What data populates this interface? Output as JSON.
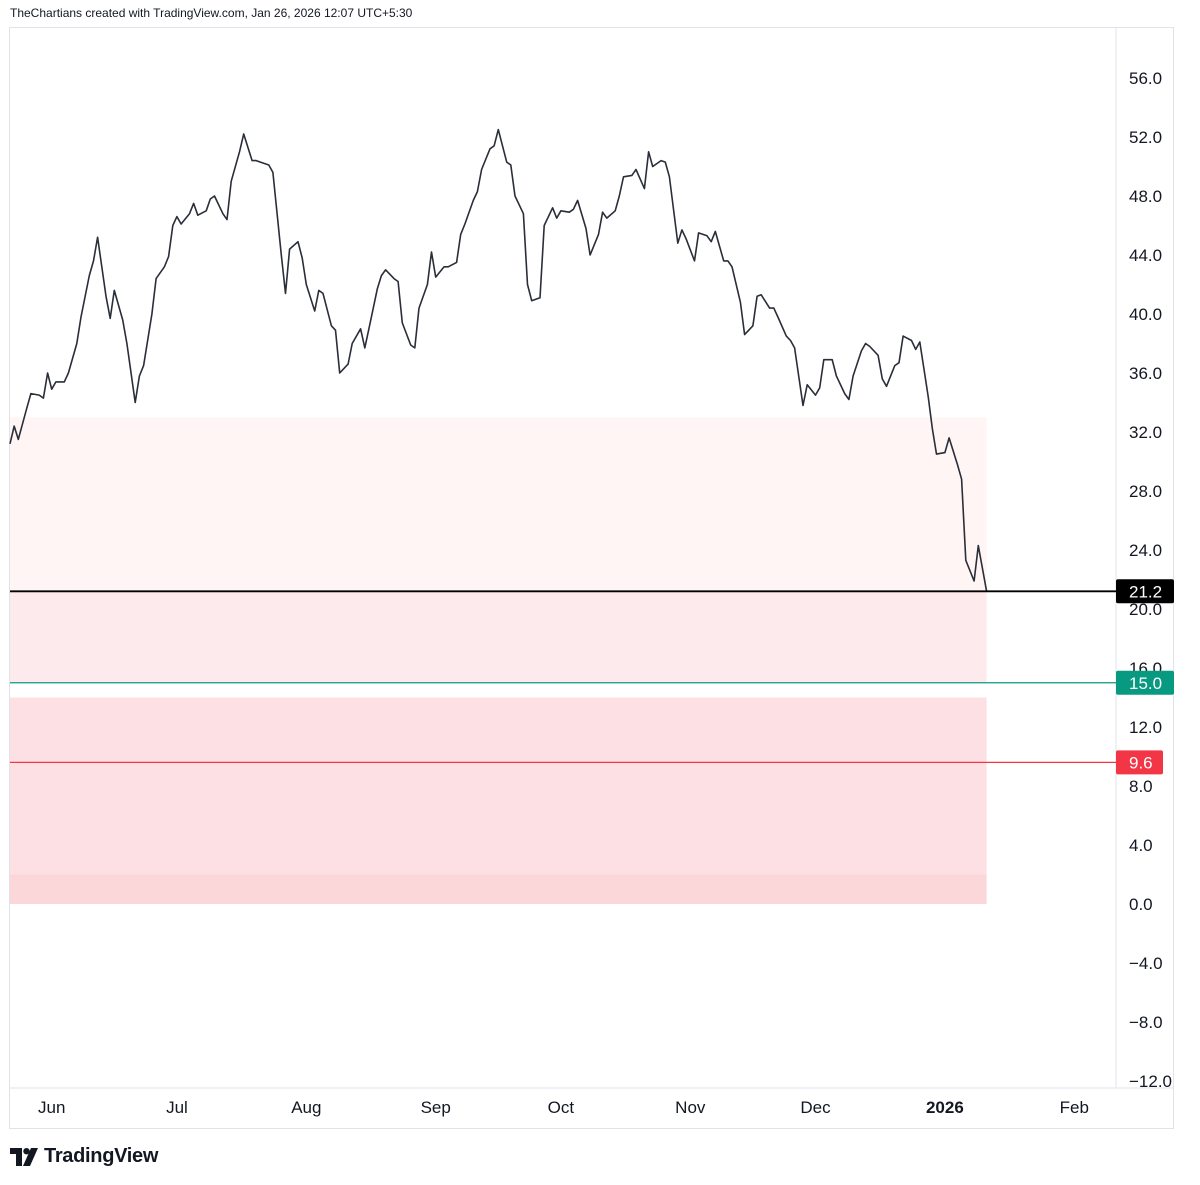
{
  "header": {
    "text": "TheChartians created with TradingView.com, Jan 26, 2026 12:07 UTC+5:30"
  },
  "footer": {
    "brand": "TradingView"
  },
  "colors": {
    "line": "#2a2e39",
    "zone_light": "#fff5f5",
    "zone_mid": "#fdeaec",
    "zone_dark": "#fde0e3",
    "zone_darkest": "#fcd7da",
    "current_line": "#000000",
    "green_line": "#089981",
    "red_line": "#f23645"
  },
  "chart_data": {
    "type": "line",
    "ylim": [
      -12,
      58
    ],
    "y_ticks": [
      "56.0",
      "52.0",
      "48.0",
      "44.0",
      "40.0",
      "36.0",
      "32.0",
      "28.0",
      "24.0",
      "20.0",
      "16.0",
      "12.0",
      "8.0",
      "4.0",
      "0.0",
      "−4.0",
      "−8.0",
      "−12.0"
    ],
    "x_ticks": [
      {
        "label": "Jun",
        "x": "2025-06-01",
        "bold": false
      },
      {
        "label": "Jul",
        "x": "2025-07-01",
        "bold": false
      },
      {
        "label": "Aug",
        "x": "2025-08-01",
        "bold": false
      },
      {
        "label": "Sep",
        "x": "2025-09-01",
        "bold": false
      },
      {
        "label": "Oct",
        "x": "2025-10-01",
        "bold": false
      },
      {
        "label": "Nov",
        "x": "2025-11-01",
        "bold": false
      },
      {
        "label": "Dec",
        "x": "2025-12-01",
        "bold": false
      },
      {
        "label": "2026",
        "x": "2026-01-01",
        "bold": true
      },
      {
        "label": "Feb",
        "x": "2026-02-01",
        "bold": false
      }
    ],
    "x_range": [
      "2025-05-22",
      "2026-02-11"
    ],
    "series": [
      {
        "values": [
          [
            "2025-05-22",
            31.2
          ],
          [
            "2025-05-23",
            32.4
          ],
          [
            "2025-05-24",
            31.5
          ],
          [
            "2025-05-26",
            33.6
          ],
          [
            "2025-05-27",
            34.6
          ],
          [
            "2025-05-29",
            34.5
          ],
          [
            "2025-05-30",
            34.3
          ],
          [
            "2025-05-31",
            36.0
          ],
          [
            "2025-06-01",
            34.9
          ],
          [
            "2025-06-02",
            35.4
          ],
          [
            "2025-06-04",
            35.4
          ],
          [
            "2025-06-05",
            36.0
          ],
          [
            "2025-06-07",
            38.0
          ],
          [
            "2025-06-08",
            39.8
          ],
          [
            "2025-06-10",
            42.6
          ],
          [
            "2025-06-11",
            43.6
          ],
          [
            "2025-06-12",
            45.2
          ],
          [
            "2025-06-14",
            41.2
          ],
          [
            "2025-06-15",
            39.7
          ],
          [
            "2025-06-16",
            41.6
          ],
          [
            "2025-06-18",
            39.6
          ],
          [
            "2025-06-19",
            38.0
          ],
          [
            "2025-06-21",
            34.0
          ],
          [
            "2025-06-22",
            35.8
          ],
          [
            "2025-06-23",
            36.5
          ],
          [
            "2025-06-25",
            40.0
          ],
          [
            "2025-06-26",
            42.4
          ],
          [
            "2025-06-28",
            43.2
          ],
          [
            "2025-06-29",
            43.9
          ],
          [
            "2025-06-30",
            46.0
          ],
          [
            "2025-07-01",
            46.6
          ],
          [
            "2025-07-02",
            46.1
          ],
          [
            "2025-07-04",
            46.8
          ],
          [
            "2025-07-05",
            47.5
          ],
          [
            "2025-07-06",
            46.7
          ],
          [
            "2025-07-08",
            47.0
          ],
          [
            "2025-07-09",
            47.8
          ],
          [
            "2025-07-10",
            48.0
          ],
          [
            "2025-07-12",
            46.8
          ],
          [
            "2025-07-13",
            46.4
          ],
          [
            "2025-07-14",
            49.0
          ],
          [
            "2025-07-16",
            51.0
          ],
          [
            "2025-07-17",
            52.2
          ],
          [
            "2025-07-19",
            50.4
          ],
          [
            "2025-07-20",
            50.4
          ],
          [
            "2025-07-21",
            50.3
          ],
          [
            "2025-07-23",
            50.1
          ],
          [
            "2025-07-24",
            49.6
          ],
          [
            "2025-07-26",
            44.0
          ],
          [
            "2025-07-27",
            41.4
          ],
          [
            "2025-07-28",
            44.4
          ],
          [
            "2025-07-30",
            44.9
          ],
          [
            "2025-07-31",
            43.8
          ],
          [
            "2025-08-01",
            42.0
          ],
          [
            "2025-08-03",
            40.2
          ],
          [
            "2025-08-04",
            41.6
          ],
          [
            "2025-08-05",
            41.4
          ],
          [
            "2025-08-07",
            39.2
          ],
          [
            "2025-08-08",
            38.9
          ],
          [
            "2025-08-09",
            36.0
          ],
          [
            "2025-08-11",
            36.6
          ],
          [
            "2025-08-12",
            38.0
          ],
          [
            "2025-08-14",
            39.0
          ],
          [
            "2025-08-15",
            37.7
          ],
          [
            "2025-08-16",
            39.0
          ],
          [
            "2025-08-18",
            41.7
          ],
          [
            "2025-08-19",
            42.6
          ],
          [
            "2025-08-20",
            43.0
          ],
          [
            "2025-08-22",
            42.4
          ],
          [
            "2025-08-23",
            42.2
          ],
          [
            "2025-08-24",
            39.4
          ],
          [
            "2025-08-26",
            37.9
          ],
          [
            "2025-08-27",
            37.7
          ],
          [
            "2025-08-28",
            40.4
          ],
          [
            "2025-08-30",
            42.0
          ],
          [
            "2025-08-31",
            44.2
          ],
          [
            "2025-09-01",
            42.5
          ],
          [
            "2025-09-03",
            43.2
          ],
          [
            "2025-09-04",
            43.2
          ],
          [
            "2025-09-06",
            43.5
          ],
          [
            "2025-09-07",
            45.4
          ],
          [
            "2025-09-08",
            46.1
          ],
          [
            "2025-09-10",
            47.7
          ],
          [
            "2025-09-11",
            48.3
          ],
          [
            "2025-09-12",
            49.8
          ],
          [
            "2025-09-14",
            51.2
          ],
          [
            "2025-09-15",
            51.4
          ],
          [
            "2025-09-16",
            52.5
          ],
          [
            "2025-09-18",
            50.3
          ],
          [
            "2025-09-19",
            50.1
          ],
          [
            "2025-09-20",
            48.0
          ],
          [
            "2025-09-22",
            46.8
          ],
          [
            "2025-09-23",
            42.0
          ],
          [
            "2025-09-24",
            40.9
          ],
          [
            "2025-09-26",
            41.1
          ],
          [
            "2025-09-27",
            46.0
          ],
          [
            "2025-09-29",
            47.2
          ],
          [
            "2025-09-30",
            46.5
          ],
          [
            "2025-10-01",
            47.0
          ],
          [
            "2025-10-03",
            46.9
          ],
          [
            "2025-10-04",
            47.1
          ],
          [
            "2025-10-05",
            47.7
          ],
          [
            "2025-10-07",
            45.8
          ],
          [
            "2025-10-08",
            44.0
          ],
          [
            "2025-10-10",
            45.4
          ],
          [
            "2025-10-11",
            46.9
          ],
          [
            "2025-10-12",
            46.5
          ],
          [
            "2025-10-14",
            47.0
          ],
          [
            "2025-10-15",
            48.0
          ],
          [
            "2025-10-16",
            49.3
          ],
          [
            "2025-10-18",
            49.4
          ],
          [
            "2025-10-19",
            49.8
          ],
          [
            "2025-10-21",
            48.5
          ],
          [
            "2025-10-22",
            51.0
          ],
          [
            "2025-10-23",
            50.0
          ],
          [
            "2025-10-25",
            50.4
          ],
          [
            "2025-10-26",
            50.3
          ],
          [
            "2025-10-27",
            49.3
          ],
          [
            "2025-10-29",
            44.8
          ],
          [
            "2025-10-30",
            45.7
          ],
          [
            "2025-10-31",
            45.1
          ],
          [
            "2025-11-02",
            43.6
          ],
          [
            "2025-11-03",
            45.5
          ],
          [
            "2025-11-05",
            45.3
          ],
          [
            "2025-11-06",
            44.9
          ],
          [
            "2025-11-07",
            45.6
          ],
          [
            "2025-11-09",
            43.6
          ],
          [
            "2025-11-10",
            43.6
          ],
          [
            "2025-11-11",
            43.2
          ],
          [
            "2025-11-13",
            40.8
          ],
          [
            "2025-11-14",
            38.6
          ],
          [
            "2025-11-16",
            39.2
          ],
          [
            "2025-11-17",
            41.2
          ],
          [
            "2025-11-18",
            41.3
          ],
          [
            "2025-11-20",
            40.4
          ],
          [
            "2025-11-21",
            40.4
          ],
          [
            "2025-11-22",
            39.8
          ],
          [
            "2025-11-24",
            38.5
          ],
          [
            "2025-11-25",
            38.2
          ],
          [
            "2025-11-26",
            37.7
          ],
          [
            "2025-11-28",
            33.8
          ],
          [
            "2025-11-29",
            35.2
          ],
          [
            "2025-12-01",
            34.5
          ],
          [
            "2025-12-02",
            35.0
          ],
          [
            "2025-12-03",
            36.9
          ],
          [
            "2025-12-05",
            36.9
          ],
          [
            "2025-12-06",
            35.8
          ],
          [
            "2025-12-08",
            34.6
          ],
          [
            "2025-12-09",
            34.2
          ],
          [
            "2025-12-10",
            35.8
          ],
          [
            "2025-12-12",
            37.5
          ],
          [
            "2025-12-13",
            38.0
          ],
          [
            "2025-12-14",
            37.8
          ],
          [
            "2025-12-16",
            37.2
          ],
          [
            "2025-12-17",
            35.6
          ],
          [
            "2025-12-18",
            35.1
          ],
          [
            "2025-12-20",
            36.5
          ],
          [
            "2025-12-21",
            36.7
          ],
          [
            "2025-12-22",
            38.5
          ],
          [
            "2025-12-24",
            38.2
          ],
          [
            "2025-12-25",
            37.6
          ],
          [
            "2025-12-26",
            38.1
          ],
          [
            "2025-12-28",
            34.4
          ],
          [
            "2025-12-29",
            32.2
          ],
          [
            "2025-12-30",
            30.5
          ],
          [
            "2026-01-01",
            30.6
          ],
          [
            "2026-01-02",
            31.6
          ],
          [
            "2026-01-04",
            29.8
          ],
          [
            "2026-01-05",
            28.8
          ],
          [
            "2026-01-06",
            23.3
          ],
          [
            "2026-01-08",
            21.9
          ],
          [
            "2026-01-09",
            24.3
          ],
          [
            "2026-01-11",
            21.2
          ]
        ]
      }
    ],
    "zones": [
      {
        "from": 21.2,
        "to": 33.0,
        "color_key": "zone_light"
      },
      {
        "from": 15.0,
        "to": 21.2,
        "color_key": "zone_mid"
      },
      {
        "from": 2.0,
        "to": 14.0,
        "color_key": "zone_dark"
      },
      {
        "from": 0.0,
        "to": 2.0,
        "color_key": "zone_darkest"
      }
    ],
    "zone_end_x": "2026-01-11",
    "price_lines": [
      {
        "value": 21.2,
        "label": "21.2",
        "color_key": "current_line",
        "width": 1.8
      },
      {
        "value": 15.0,
        "label": "15.0",
        "color_key": "green_line",
        "width": 1.3
      },
      {
        "value": 9.6,
        "label": "9.6",
        "color_key": "red_line",
        "width": 1.3
      }
    ]
  }
}
